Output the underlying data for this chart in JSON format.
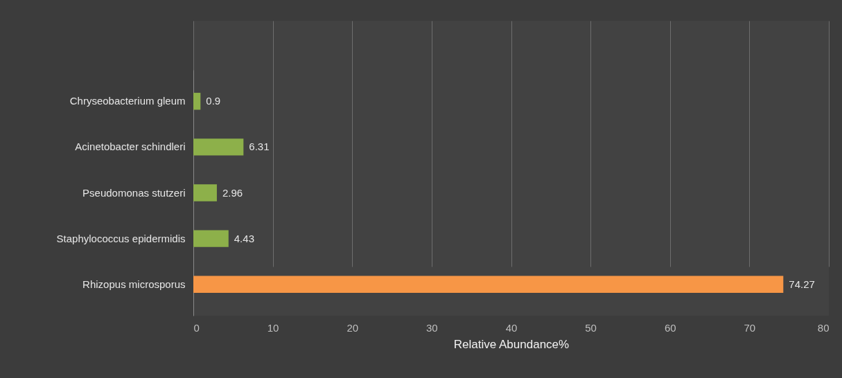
{
  "chart_data": {
    "type": "bar",
    "orientation": "horizontal",
    "categories": [
      "Chryseobacterium gleum",
      "Acinetobacter schindleri",
      "Pseudomonas stutzeri",
      "Staphylococcus epidermidis",
      "Rhizopus microsporus"
    ],
    "values": [
      0.9,
      6.31,
      2.96,
      4.43,
      74.27
    ],
    "colors": [
      "#8db04a",
      "#8db04a",
      "#8db04a",
      "#8db04a",
      "#f79646"
    ],
    "xlabel": "Relative Abundance%",
    "xlim": [
      0,
      80
    ],
    "xticks": [
      0,
      10,
      20,
      30,
      40,
      50,
      60,
      70,
      80
    ],
    "grid": "x",
    "data_labels": true
  }
}
